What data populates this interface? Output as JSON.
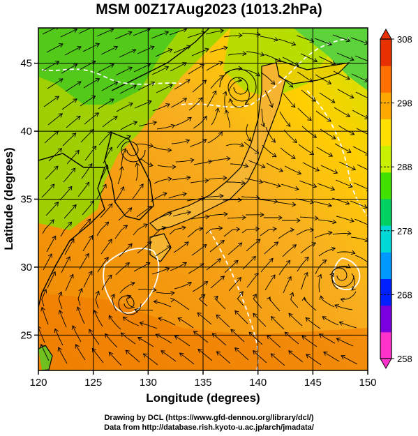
{
  "title": "MSM 00Z17Aug2023 (1013.2hPa)",
  "chart_data": {
    "type": "map",
    "xlabel": "Longitude (degrees)",
    "ylabel": "Latitude  (degrees)",
    "xlim": [
      120,
      150
    ],
    "ylim": [
      22.4,
      47.6
    ],
    "xticks": [
      120,
      125,
      130,
      135,
      140,
      145,
      150
    ],
    "yticks": [
      25,
      30,
      35,
      40,
      45
    ],
    "colorbar": {
      "min": 258,
      "max": 308,
      "ticks": [
        258,
        268,
        278,
        288,
        298,
        308
      ],
      "colors": [
        "#ff33cc",
        "#7a00e0",
        "#0020ff",
        "#0099ff",
        "#00d8d8",
        "#00d060",
        "#40e000",
        "#c8f000",
        "#ffe000",
        "#ffa800",
        "#ff7000",
        "#e83000"
      ]
    },
    "grid": true
  },
  "credits": {
    "line1": "Drawing by DCL (https://www.gfd-dennou.org/library/dcl/)",
    "line2": "Data from http://database.rish.kyoto-u.ac.jp/arch/jmadata/"
  }
}
